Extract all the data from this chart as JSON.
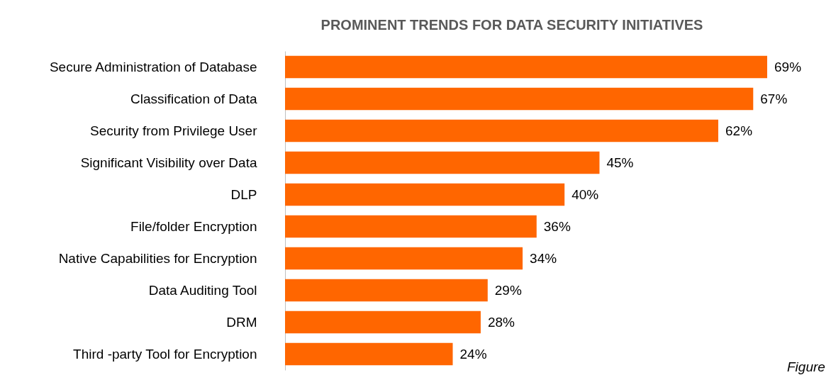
{
  "chart_data": {
    "type": "bar",
    "title": "PROMINENT TRENDS FOR DATA SECURITY INITIATIVES",
    "orientation": "horizontal",
    "categories": [
      "Secure Administration of Database",
      "Classification of Data",
      "Security from Privilege User",
      "Significant Visibility over Data",
      "DLP",
      "File/folder Encryption",
      "Native Capabilities for Encryption",
      "Data Auditing Tool",
      "DRM",
      "Third -party Tool for Encryption"
    ],
    "values": [
      69,
      67,
      62,
      45,
      40,
      36,
      34,
      29,
      28,
      24
    ],
    "value_labels": [
      "69%",
      "67%",
      "62%",
      "45%",
      "40%",
      "36%",
      "34%",
      "29%",
      "28%",
      "24%"
    ],
    "color": "#ff6600",
    "annotations": [
      "Figure"
    ]
  }
}
